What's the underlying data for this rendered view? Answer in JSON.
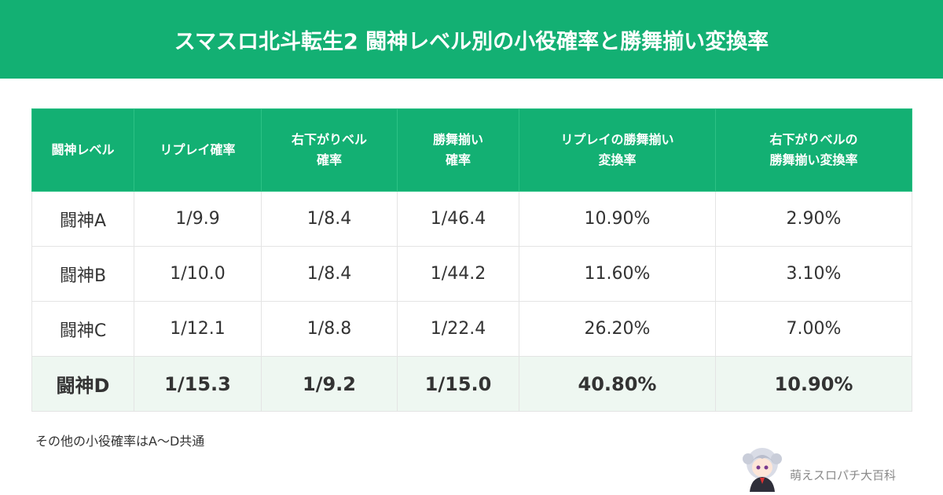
{
  "header": {
    "title": "スマスロ北斗転生2 闘神レベル別の小役確率と勝舞揃い変換率"
  },
  "table": {
    "columns": [
      [
        "闘神レベル"
      ],
      [
        "リプレイ確率"
      ],
      [
        "右下がりベル",
        "確率"
      ],
      [
        "勝舞揃い",
        "確率"
      ],
      [
        "リプレイの勝舞揃い",
        "変換率"
      ],
      [
        "右下がりベルの",
        "勝舞揃い変換率"
      ]
    ],
    "rows": [
      [
        "闘神A",
        "1/9.9",
        "1/8.4",
        "1/46.4",
        "10.90%",
        "2.90%"
      ],
      [
        "闘神B",
        "1/10.0",
        "1/8.4",
        "1/44.2",
        "11.60%",
        "3.10%"
      ],
      [
        "闘神C",
        "1/12.1",
        "1/8.8",
        "1/22.4",
        "26.20%",
        "7.00%"
      ],
      [
        "闘神D",
        "1/15.3",
        "1/9.2",
        "1/15.0",
        "40.80%",
        "10.90%"
      ]
    ]
  },
  "note": "その他の小役確率はA～D共通",
  "footer": {
    "brand": "萌えスロパチ大百科"
  }
}
